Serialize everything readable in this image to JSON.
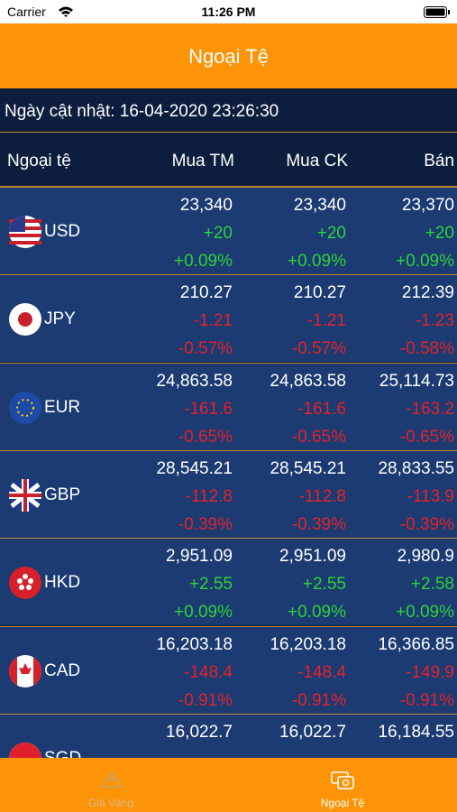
{
  "status_bar": {
    "carrier": "Carrier",
    "time": "11:26 PM"
  },
  "header": {
    "title": "Ngoại Tệ"
  },
  "updated": "Ngày cật nhật: 16-04-2020 23:26:30",
  "table": {
    "columns": [
      "Ngoại tệ",
      "Mua TM",
      "Mua CK",
      "Bán"
    ],
    "rows": [
      {
        "code": "USD",
        "color": "#2fd13a",
        "cells": [
          {
            "price": "23,340",
            "change": "+20",
            "pct": "+0.09%"
          },
          {
            "price": "23,340",
            "change": "+20",
            "pct": "+0.09%"
          },
          {
            "price": "23,370",
            "change": "+20",
            "pct": "+0.09%"
          }
        ]
      },
      {
        "code": "JPY",
        "color": "#e3222b",
        "cells": [
          {
            "price": "210.27",
            "change": "-1.21",
            "pct": "-0.57%"
          },
          {
            "price": "210.27",
            "change": "-1.21",
            "pct": "-0.57%"
          },
          {
            "price": "212.39",
            "change": "-1.23",
            "pct": "-0.58%"
          }
        ]
      },
      {
        "code": "EUR",
        "color": "#e3222b",
        "cells": [
          {
            "price": "24,863.58",
            "change": "-161.6",
            "pct": "-0.65%"
          },
          {
            "price": "24,863.58",
            "change": "-161.6",
            "pct": "-0.65%"
          },
          {
            "price": "25,114.73",
            "change": "-163.2",
            "pct": "-0.65%"
          }
        ]
      },
      {
        "code": "GBP",
        "color": "#e3222b",
        "cells": [
          {
            "price": "28,545.21",
            "change": "-112.8",
            "pct": "-0.39%"
          },
          {
            "price": "28,545.21",
            "change": "-112.8",
            "pct": "-0.39%"
          },
          {
            "price": "28,833.55",
            "change": "-113.9",
            "pct": "-0.39%"
          }
        ]
      },
      {
        "code": "HKD",
        "color": "#2fd13a",
        "cells": [
          {
            "price": "2,951.09",
            "change": "+2.55",
            "pct": "+0.09%"
          },
          {
            "price": "2,951.09",
            "change": "+2.55",
            "pct": "+0.09%"
          },
          {
            "price": "2,980.9",
            "change": "+2.58",
            "pct": "+0.09%"
          }
        ]
      },
      {
        "code": "CAD",
        "color": "#e3222b",
        "cells": [
          {
            "price": "16,203.18",
            "change": "-148.4",
            "pct": "-0.91%"
          },
          {
            "price": "16,203.18",
            "change": "-148.4",
            "pct": "-0.91%"
          },
          {
            "price": "16,366.85",
            "change": "-149.9",
            "pct": "-0.91%"
          }
        ]
      },
      {
        "code": "SGD",
        "color": "#e3222b",
        "cells": [
          {
            "price": "16,022.7"
          },
          {
            "price": "16,022.7"
          },
          {
            "price": "16,184.55"
          }
        ]
      }
    ]
  },
  "tabs": [
    "Giá Vàng",
    "Ngoại Tệ"
  ]
}
